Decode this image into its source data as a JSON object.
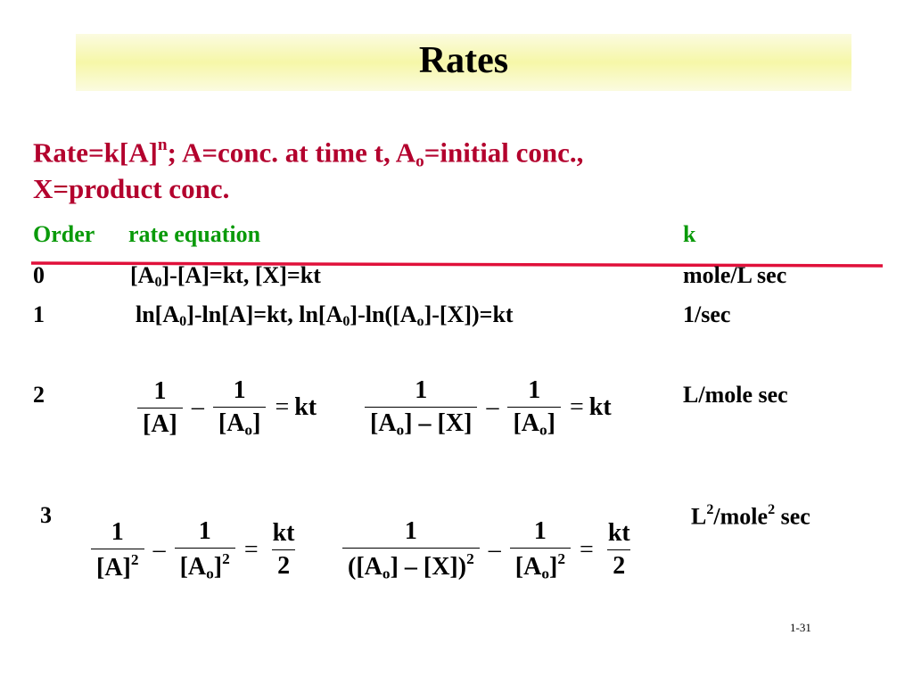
{
  "title": "Rates",
  "intro": {
    "line1": [
      "Rate=k[A]",
      "n",
      "; A=conc. at time t, A",
      "o",
      "=initial conc.,"
    ],
    "line2": "X=product conc."
  },
  "header": {
    "order": "Order",
    "equation": "rate equation",
    "k": "k"
  },
  "rows": [
    {
      "order": "0",
      "equation": [
        "[A",
        "0",
        "]-[A]=kt, [X]=kt"
      ],
      "k": "mole/L sec"
    },
    {
      "order": "1",
      "equation": [
        "ln[A",
        "0",
        "]-ln[A]=kt, ln[A",
        "0",
        "]-ln([A",
        "o",
        "]-[X])=kt"
      ],
      "k": "1/sec"
    },
    {
      "order": "2",
      "k": "L/mole sec",
      "equations": [
        {
          "terms": [
            {
              "num": "1",
              "den": [
                "[A]"
              ]
            },
            {
              "num": "1",
              "den": [
                "[A",
                "o",
                "]"
              ]
            }
          ],
          "ops": [
            "–",
            "="
          ],
          "rhs": "kt"
        },
        {
          "terms": [
            {
              "num": "1",
              "den": [
                "[A",
                "o",
                "] – [X]"
              ]
            },
            {
              "num": "1",
              "den": [
                "[A",
                "o",
                "]"
              ]
            }
          ],
          "ops": [
            "–",
            "="
          ],
          "rhs": "kt"
        }
      ]
    },
    {
      "order": "3",
      "k": [
        "L",
        "2",
        "/mole",
        "2",
        " sec"
      ],
      "equations": [
        {
          "terms": [
            {
              "num": "1",
              "den": [
                "[A]",
                "2"
              ]
            },
            {
              "num": "1",
              "den": [
                "[A",
                "o",
                "]",
                "2"
              ]
            }
          ],
          "ops": [
            "–",
            "="
          ],
          "rhs": {
            "num": "kt",
            "den": [
              "2"
            ]
          }
        },
        {
          "terms": [
            {
              "num": "1",
              "den": [
                "([A",
                "o",
                "] – [X])",
                "2"
              ]
            },
            {
              "num": "1",
              "den": [
                "[A",
                "o",
                "]",
                "2"
              ]
            }
          ],
          "ops": [
            "–",
            "="
          ],
          "rhs": {
            "num": "kt",
            "den": [
              "2"
            ]
          }
        }
      ]
    }
  ],
  "slide_number": "1-31"
}
